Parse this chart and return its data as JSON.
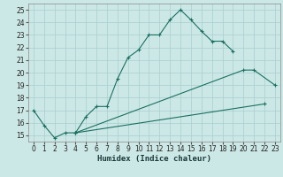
{
  "background_color": "#cce8e6",
  "grid_color": "#a8cece",
  "line_color": "#1a7060",
  "xlabel": "Humidex (Indice chaleur)",
  "xlim": [
    -0.5,
    23.5
  ],
  "ylim": [
    14.5,
    25.5
  ],
  "xticks": [
    0,
    1,
    2,
    3,
    4,
    5,
    6,
    7,
    8,
    9,
    10,
    11,
    12,
    13,
    14,
    15,
    16,
    17,
    18,
    19,
    20,
    21,
    22,
    23
  ],
  "yticks": [
    15,
    16,
    17,
    18,
    19,
    20,
    21,
    22,
    23,
    24,
    25
  ],
  "series1_x": [
    0,
    1,
    2,
    3,
    4,
    5,
    6,
    7,
    8,
    9,
    10,
    11,
    12,
    13,
    14,
    15,
    16,
    17,
    18,
    19
  ],
  "series1_y": [
    17.0,
    15.8,
    14.8,
    15.2,
    15.2,
    16.5,
    17.3,
    17.3,
    19.5,
    21.2,
    21.8,
    23.0,
    23.0,
    24.2,
    25.0,
    24.2,
    23.3,
    22.5,
    22.5,
    21.7
  ],
  "series2_x": [
    4,
    20,
    21,
    23
  ],
  "series2_y": [
    15.2,
    20.2,
    20.2,
    19.0
  ],
  "series3_x": [
    4,
    22
  ],
  "series3_y": [
    15.2,
    17.5
  ],
  "tick_fontsize": 5.5,
  "xlabel_fontsize": 6.5,
  "line_width": 0.8,
  "marker_size": 3.0
}
